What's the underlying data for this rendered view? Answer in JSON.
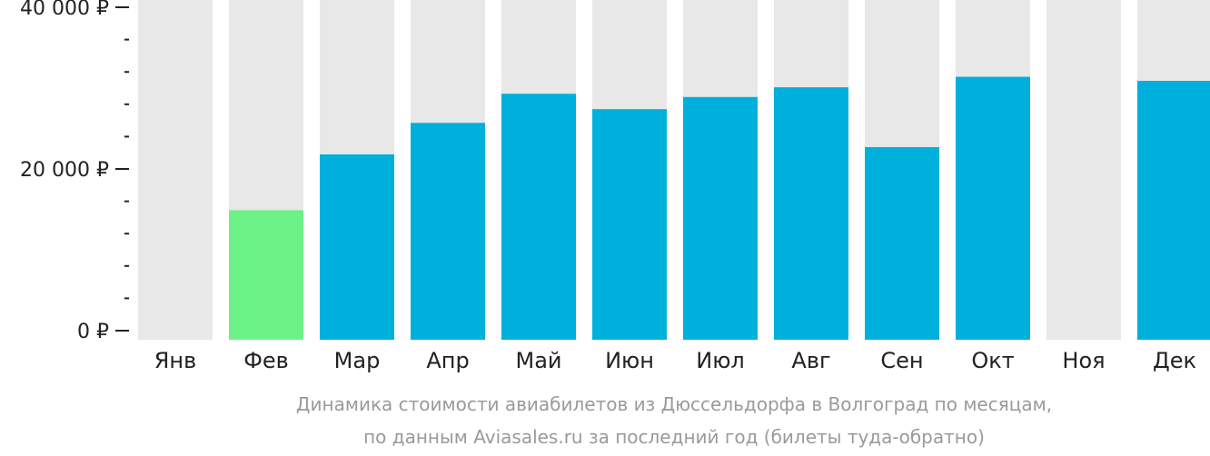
{
  "chart_data": {
    "type": "bar",
    "categories": [
      "Янв",
      "Фев",
      "Мар",
      "Апр",
      "Май",
      "Июн",
      "Июл",
      "Авг",
      "Сен",
      "Окт",
      "Ноя",
      "Дек"
    ],
    "values": [
      null,
      14900,
      21800,
      25700,
      29300,
      27400,
      28900,
      30100,
      22700,
      31400,
      null,
      30900
    ],
    "ylim": [
      0,
      40000
    ],
    "yticks": [
      {
        "value": 0,
        "label": "0 ₽"
      },
      {
        "value": 20000,
        "label": "20 000 ₽"
      },
      {
        "value": 40000,
        "label": "40 000 ₽"
      }
    ],
    "minor_tick_step": 4000,
    "highlight_index": 1,
    "colors": {
      "bar": "#00b0dc",
      "highlight": "#6cf287",
      "background_bar": "#e8e8e8",
      "axis": "#222222"
    },
    "caption_lines": [
      "Динамика стоимости авиабилетов из Дюссельдорфа в Волгоград по месяцам,",
      "по данным Aviasales.ru за последний год (билеты туда-обратно)"
    ],
    "grid": false,
    "legend": "none"
  }
}
